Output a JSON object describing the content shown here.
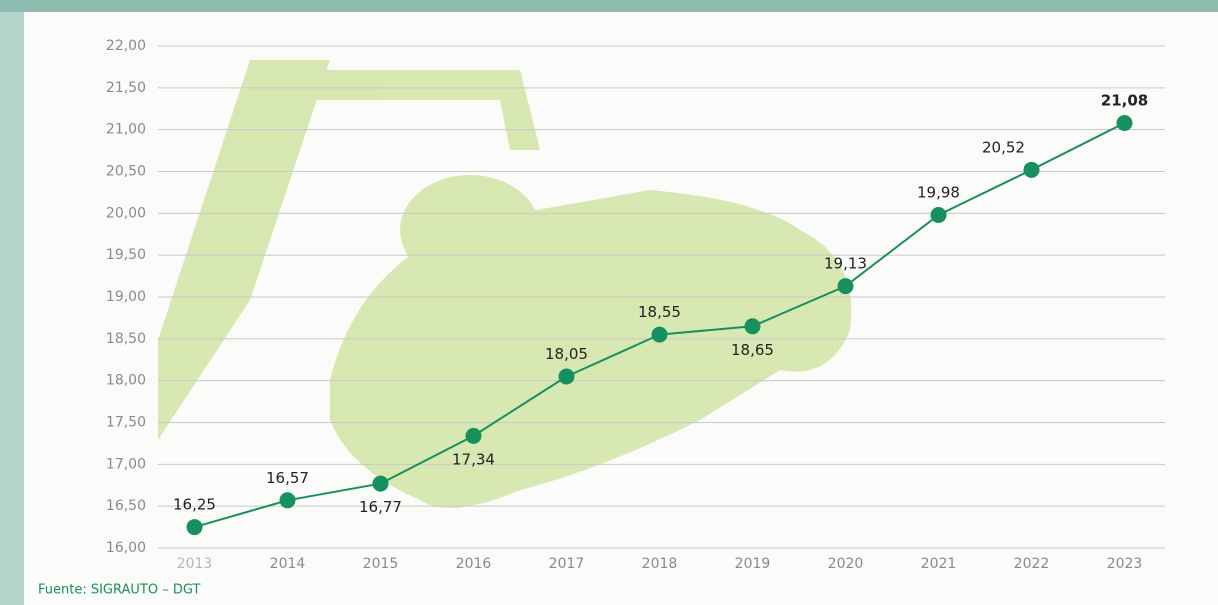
{
  "chart_data": {
    "type": "line",
    "categories": [
      "2013",
      "2014",
      "2015",
      "2016",
      "2017",
      "2018",
      "2019",
      "2020",
      "2021",
      "2022",
      "2023"
    ],
    "series": [
      {
        "color": "#17905f",
        "values": [
          16.25,
          16.57,
          16.77,
          17.34,
          18.05,
          18.55,
          18.65,
          19.13,
          19.98,
          20.52,
          21.08
        ],
        "value_labels": [
          "16,25",
          "16,57",
          "16,77",
          "17,34",
          "18,05",
          "18,55",
          "18,65",
          "19,13",
          "19,98",
          "20,52",
          "21,08"
        ]
      }
    ],
    "ylim": [
      16,
      22
    ],
    "yticks": [
      {
        "value": 16,
        "label": "16,00"
      },
      {
        "value": 16.5,
        "label": "16,50"
      },
      {
        "value": 17,
        "label": "17,00"
      },
      {
        "value": 17.5,
        "label": "17,50"
      },
      {
        "value": 18,
        "label": "18,00"
      },
      {
        "value": 18.5,
        "label": "18,50"
      },
      {
        "value": 19,
        "label": "19,00"
      },
      {
        "value": 19.5,
        "label": "19,50"
      },
      {
        "value": 20,
        "label": "20,00"
      },
      {
        "value": 20.5,
        "label": "20,50"
      },
      {
        "value": 21,
        "label": "21,00"
      },
      {
        "value": 21.5,
        "label": "21,50"
      },
      {
        "value": 22,
        "label": "22,00"
      }
    ],
    "grid": true,
    "source": "Fuente: SIGRAUTO – DGT"
  }
}
